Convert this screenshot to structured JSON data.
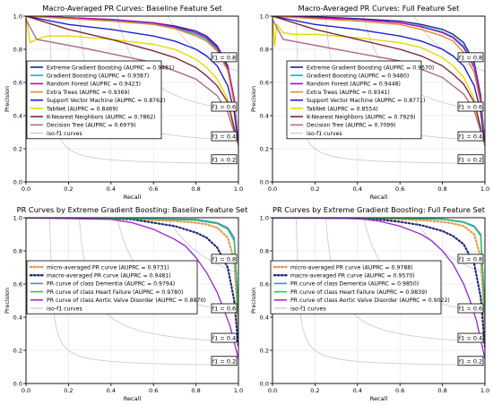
{
  "chart_data": [
    {
      "type": "line",
      "title": "Macro-Averaged PR Curves: Baseline Feature Set",
      "xlabel": "Recall",
      "ylabel": "Precision",
      "xlim": [
        0,
        1
      ],
      "ylim": [
        0,
        1
      ],
      "xticks": [
        "0.0",
        "0.2",
        "0.4",
        "0.6",
        "0.8",
        "1.0"
      ],
      "yticks": [
        "0.0",
        "0.2",
        "0.4",
        "0.6",
        "0.8",
        "1.0"
      ],
      "grid": true,
      "legend_position": "center-left",
      "iso_f1_labels": [
        "f1 = 0.8",
        "f1 = 0.6",
        "f1 = 0.4",
        "f1 = 0.2"
      ],
      "series": [
        {
          "name": "Extreme Gradient Boosting (AUPRC = 0.9481)",
          "color": "#1f1f8f",
          "dash": "",
          "x": [
            0,
            0.2,
            0.4,
            0.6,
            0.7,
            0.8,
            0.85,
            0.9,
            0.95,
            0.98,
            1.0
          ],
          "y": [
            1.0,
            0.99,
            0.98,
            0.96,
            0.94,
            0.91,
            0.88,
            0.82,
            0.7,
            0.5,
            0.22
          ]
        },
        {
          "name": "Gradient Boosting (AUPRC = 0.9387)",
          "color": "#00bfbf",
          "dash": "",
          "x": [
            0,
            0.2,
            0.4,
            0.6,
            0.7,
            0.8,
            0.85,
            0.9,
            0.95,
            0.98,
            1.0
          ],
          "y": [
            1.0,
            0.99,
            0.975,
            0.955,
            0.93,
            0.89,
            0.86,
            0.8,
            0.68,
            0.48,
            0.22
          ]
        },
        {
          "name": "Random Forest (AUPRC = 0.9423)",
          "color": "#c000c0",
          "dash": "",
          "x": [
            0,
            0.2,
            0.4,
            0.6,
            0.7,
            0.8,
            0.85,
            0.9,
            0.95,
            0.98,
            1.0
          ],
          "y": [
            1.0,
            0.99,
            0.98,
            0.96,
            0.935,
            0.9,
            0.87,
            0.81,
            0.69,
            0.5,
            0.22
          ]
        },
        {
          "name": "Extra Trees (AUPRC = 0.9369)",
          "color": "#e08a30",
          "dash": "",
          "x": [
            0,
            0.2,
            0.4,
            0.6,
            0.7,
            0.8,
            0.85,
            0.9,
            0.95,
            0.98,
            1.0
          ],
          "y": [
            1.0,
            0.985,
            0.97,
            0.95,
            0.925,
            0.88,
            0.85,
            0.79,
            0.67,
            0.47,
            0.22
          ]
        },
        {
          "name": "Support Vector Machine (AUPRC = 0.8762)",
          "color": "#2020d0",
          "dash": "",
          "x": [
            0,
            0.2,
            0.4,
            0.6,
            0.7,
            0.8,
            0.85,
            0.9,
            0.95,
            0.98,
            1.0
          ],
          "y": [
            1.0,
            0.95,
            0.92,
            0.88,
            0.85,
            0.8,
            0.76,
            0.7,
            0.58,
            0.42,
            0.22
          ]
        },
        {
          "name": "TabNet (AUPRC = 0.8469)",
          "color": "#e6d800",
          "dash": "",
          "x": [
            0,
            0.02,
            0.05,
            0.1,
            0.2,
            0.4,
            0.6,
            0.7,
            0.8,
            0.85,
            0.9,
            0.95,
            1.0
          ],
          "y": [
            1.0,
            0.84,
            0.86,
            0.88,
            0.88,
            0.86,
            0.83,
            0.8,
            0.74,
            0.69,
            0.62,
            0.5,
            0.22
          ]
        },
        {
          "name": "K-Nearest Neighbors (AUPRC = 0.7862)",
          "color": "#7a2a3a",
          "dash": "",
          "x": [
            0,
            0.2,
            0.4,
            0.6,
            0.7,
            0.8,
            0.85,
            0.9,
            0.95,
            1.0
          ],
          "y": [
            1.0,
            0.92,
            0.86,
            0.79,
            0.75,
            0.69,
            0.64,
            0.58,
            0.48,
            0.22
          ]
        },
        {
          "name": "Decision Tree (AUPRC = 0.6979)",
          "color": "#b06a8a",
          "dash": "",
          "x": [
            0,
            0.05,
            0.3,
            0.6,
            0.8,
            0.9,
            0.95,
            1.0
          ],
          "y": [
            0.98,
            0.86,
            0.8,
            0.72,
            0.62,
            0.52,
            0.42,
            0.22
          ]
        }
      ]
    },
    {
      "type": "line",
      "title": "Macro-Averaged PR Curves: Full Feature Set",
      "xlabel": "Recall",
      "ylabel": "Precision",
      "xlim": [
        0,
        1
      ],
      "ylim": [
        0,
        1
      ],
      "xticks": [
        "0.0",
        "0.2",
        "0.4",
        "0.6",
        "0.8",
        "1.0"
      ],
      "yticks": [
        "0.0",
        "0.2",
        "0.4",
        "0.6",
        "0.8",
        "1.0"
      ],
      "grid": true,
      "legend_position": "center-right",
      "iso_f1_labels": [
        "f1 = 0.8",
        "f1 = 0.6",
        "f1 = 0.4",
        "f1 = 0.2"
      ],
      "series": [
        {
          "name": "Extreme Gradient Boosting (AUPRC = 0.9570)",
          "color": "#1f1f8f",
          "dash": "",
          "x": [
            0,
            0.2,
            0.4,
            0.6,
            0.7,
            0.8,
            0.85,
            0.9,
            0.95,
            0.98,
            1.0
          ],
          "y": [
            1.0,
            0.995,
            0.985,
            0.97,
            0.95,
            0.92,
            0.89,
            0.84,
            0.72,
            0.52,
            0.22
          ]
        },
        {
          "name": "Gradient Boosting (AUPRC = 0.9480)",
          "color": "#00bfbf",
          "dash": "",
          "x": [
            0,
            0.2,
            0.4,
            0.6,
            0.7,
            0.8,
            0.85,
            0.9,
            0.95,
            0.98,
            1.0
          ],
          "y": [
            1.0,
            0.99,
            0.98,
            0.96,
            0.94,
            0.905,
            0.875,
            0.82,
            0.7,
            0.5,
            0.22
          ]
        },
        {
          "name": "Random Forest (AUPRC = 0.9448)",
          "color": "#c000c0",
          "dash": "",
          "x": [
            0,
            0.2,
            0.4,
            0.6,
            0.7,
            0.8,
            0.85,
            0.9,
            0.95,
            0.98,
            1.0
          ],
          "y": [
            1.0,
            0.99,
            0.98,
            0.96,
            0.935,
            0.9,
            0.87,
            0.81,
            0.69,
            0.5,
            0.22
          ]
        },
        {
          "name": "Extra Trees (AUPRC = 0.9341)",
          "color": "#e08a30",
          "dash": "",
          "x": [
            0,
            0.2,
            0.4,
            0.6,
            0.7,
            0.8,
            0.85,
            0.9,
            0.95,
            0.98,
            1.0
          ],
          "y": [
            1.0,
            0.985,
            0.97,
            0.95,
            0.92,
            0.88,
            0.85,
            0.78,
            0.66,
            0.47,
            0.22
          ]
        },
        {
          "name": "Support Vector Machine (AUPRC = 0.8771)",
          "color": "#2020d0",
          "dash": "",
          "x": [
            0,
            0.2,
            0.4,
            0.6,
            0.7,
            0.8,
            0.85,
            0.9,
            0.95,
            0.98,
            1.0
          ],
          "y": [
            1.0,
            0.95,
            0.92,
            0.88,
            0.85,
            0.8,
            0.76,
            0.7,
            0.58,
            0.42,
            0.22
          ]
        },
        {
          "name": "TabNet (AUPRC = 0.8554)",
          "color": "#e6d800",
          "dash": "",
          "x": [
            0,
            0.01,
            0.02,
            0.05,
            0.1,
            0.2,
            0.4,
            0.6,
            0.7,
            0.8,
            0.85,
            0.9,
            0.95,
            1.0
          ],
          "y": [
            1.0,
            0.82,
            0.95,
            0.9,
            0.89,
            0.89,
            0.87,
            0.84,
            0.81,
            0.75,
            0.7,
            0.63,
            0.5,
            0.22
          ]
        },
        {
          "name": "K-Nearest Neighbors (AUPRC = 0.7929)",
          "color": "#7a2a3a",
          "dash": "",
          "x": [
            0,
            0.2,
            0.4,
            0.6,
            0.7,
            0.8,
            0.85,
            0.9,
            0.95,
            1.0
          ],
          "y": [
            1.0,
            0.92,
            0.86,
            0.8,
            0.76,
            0.7,
            0.65,
            0.59,
            0.48,
            0.22
          ]
        },
        {
          "name": "Decision Tree (AUPRC = 0.7099)",
          "color": "#b06a8a",
          "dash": "",
          "x": [
            0,
            0.05,
            0.3,
            0.6,
            0.8,
            0.9,
            0.95,
            1.0
          ],
          "y": [
            0.98,
            0.86,
            0.8,
            0.73,
            0.63,
            0.53,
            0.43,
            0.22
          ]
        }
      ]
    },
    {
      "type": "line",
      "title": "PR Curves by Extreme Gradient Boosting: Baseline Feature Set",
      "xlabel": "Recall",
      "ylabel": "Precision",
      "xlim": [
        0,
        1
      ],
      "ylim": [
        0,
        1
      ],
      "xticks": [
        "0.0",
        "0.2",
        "0.4",
        "0.6",
        "0.8",
        "1.0"
      ],
      "yticks": [
        "0.0",
        "0.2",
        "0.4",
        "0.6",
        "0.8",
        "1.0"
      ],
      "grid": true,
      "legend_position": "center-left",
      "iso_f1_labels": [
        "f1 = 0.8",
        "f1 = 0.6",
        "f1 = 0.4",
        "f1 = 0.2"
      ],
      "series": [
        {
          "name": "micro-averaged PR curve (AUPRC = 0.9731)",
          "color": "#e69a50",
          "dash": "dot",
          "x": [
            0,
            0.3,
            0.5,
            0.7,
            0.8,
            0.85,
            0.9,
            0.95,
            0.98,
            1.0
          ],
          "y": [
            1.0,
            1.0,
            0.99,
            0.98,
            0.97,
            0.96,
            0.94,
            0.88,
            0.74,
            0.33
          ]
        },
        {
          "name": "macro-averaged PR curve (AUPRC = 0.9481)",
          "color": "#1f2a7a",
          "dash": "dot",
          "x": [
            0,
            0.3,
            0.5,
            0.6,
            0.7,
            0.8,
            0.85,
            0.9,
            0.95,
            0.98,
            1.0
          ],
          "y": [
            1.0,
            1.0,
            0.99,
            0.97,
            0.95,
            0.91,
            0.88,
            0.82,
            0.7,
            0.5,
            0.22
          ]
        },
        {
          "name": "PR curve of class Dementia (AUPRC = 0.9794)",
          "color": "#3a8ae0",
          "dash": "",
          "x": [
            0,
            0.5,
            0.8,
            0.9,
            0.95,
            0.98,
            1.0
          ],
          "y": [
            1.0,
            0.995,
            0.99,
            0.97,
            0.94,
            0.88,
            0.45
          ]
        },
        {
          "name": "PR curve of class Heart Failure (AUPRC = 0.9780)",
          "color": "#30c060",
          "dash": "",
          "x": [
            0,
            0.5,
            0.8,
            0.9,
            0.95,
            0.98,
            1.0
          ],
          "y": [
            1.0,
            0.995,
            0.985,
            0.965,
            0.93,
            0.86,
            0.4
          ]
        },
        {
          "name": "PR curve of class Aortic Valve Disorder (AUPRC = 0.8870)",
          "color": "#a030d0",
          "dash": "",
          "x": [
            0,
            0.4,
            0.5,
            0.6,
            0.7,
            0.75,
            0.8,
            0.85,
            0.9,
            0.93,
            0.96,
            1.0
          ],
          "y": [
            1.0,
            0.99,
            0.97,
            0.93,
            0.87,
            0.83,
            0.76,
            0.67,
            0.55,
            0.45,
            0.35,
            0.15
          ]
        }
      ]
    },
    {
      "type": "line",
      "title": "PR Curves by Extreme Gradient Boosting: Full Feature Set",
      "xlabel": "Recall",
      "ylabel": "Precision",
      "xlim": [
        0,
        1
      ],
      "ylim": [
        0,
        1
      ],
      "xticks": [
        "0.0",
        "0.2",
        "0.4",
        "0.6",
        "0.8",
        "1.0"
      ],
      "yticks": [
        "0.0",
        "0.2",
        "0.4",
        "0.6",
        "0.8",
        "1.0"
      ],
      "grid": true,
      "legend_position": "center-right",
      "iso_f1_labels": [
        "f1 = 0.8",
        "f1 = 0.6",
        "f1 = 0.4",
        "f1 = 0.2"
      ],
      "series": [
        {
          "name": "micro-averaged PR curve (AUPRC = 0.9788)",
          "color": "#e69a50",
          "dash": "dot",
          "x": [
            0,
            0.3,
            0.5,
            0.7,
            0.8,
            0.85,
            0.9,
            0.95,
            0.98,
            1.0
          ],
          "y": [
            1.0,
            1.0,
            0.995,
            0.985,
            0.975,
            0.965,
            0.95,
            0.9,
            0.76,
            0.33
          ]
        },
        {
          "name": "macro-averaged PR curve (AUPRC = 0.9570)",
          "color": "#1f2a7a",
          "dash": "dot",
          "x": [
            0,
            0.3,
            0.5,
            0.6,
            0.7,
            0.8,
            0.85,
            0.9,
            0.95,
            0.98,
            1.0
          ],
          "y": [
            1.0,
            1.0,
            0.99,
            0.975,
            0.955,
            0.92,
            0.89,
            0.84,
            0.72,
            0.52,
            0.22
          ]
        },
        {
          "name": "PR curve of class Dementia (AUPRC = 0.9850)",
          "color": "#3a8ae0",
          "dash": "",
          "x": [
            0,
            0.5,
            0.8,
            0.9,
            0.95,
            0.98,
            1.0
          ],
          "y": [
            1.0,
            0.998,
            0.992,
            0.975,
            0.95,
            0.9,
            0.45
          ]
        },
        {
          "name": "PR curve of class Heart Failure (AUPRC = 0.9839)",
          "color": "#30c060",
          "dash": "",
          "x": [
            0,
            0.5,
            0.8,
            0.9,
            0.95,
            0.98,
            1.0
          ],
          "y": [
            1.0,
            0.997,
            0.99,
            0.972,
            0.945,
            0.89,
            0.4
          ]
        },
        {
          "name": "PR curve of class Aortic Valve Disorder (AUPRC = 0.9022)",
          "color": "#a030d0",
          "dash": "",
          "x": [
            0,
            0.4,
            0.5,
            0.6,
            0.7,
            0.75,
            0.8,
            0.85,
            0.9,
            0.93,
            0.96,
            1.0
          ],
          "y": [
            1.0,
            0.995,
            0.98,
            0.95,
            0.9,
            0.86,
            0.8,
            0.72,
            0.6,
            0.5,
            0.38,
            0.15
          ]
        }
      ]
    }
  ]
}
